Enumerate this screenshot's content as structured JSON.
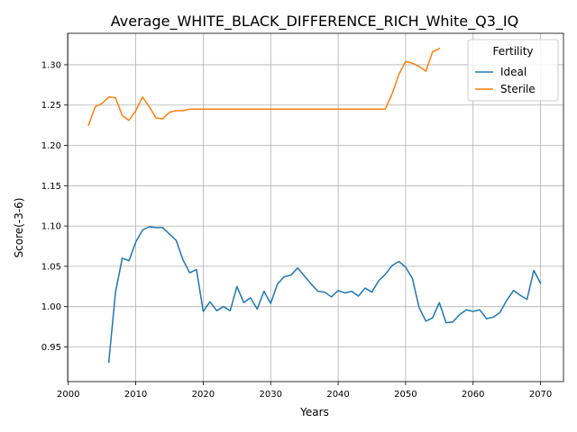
{
  "chart_data": {
    "type": "line",
    "title": "Average_WHITE_BLACK_DIFFERENCE_RICH_White_Q3_IQ",
    "xlabel": "Years",
    "ylabel": "Score(-3-6)",
    "xlim": [
      1999.9,
      2073.4
    ],
    "ylim": [
      0.907,
      1.339
    ],
    "xticks": [
      2000,
      2010,
      2020,
      2030,
      2040,
      2050,
      2060,
      2070
    ],
    "xtick_labels": [
      "2000",
      "2010",
      "2020",
      "2030",
      "2040",
      "2050",
      "2060",
      "2070"
    ],
    "yticks": [
      0.95,
      1.0,
      1.05,
      1.1,
      1.15,
      1.2,
      1.25,
      1.3
    ],
    "ytick_labels": [
      "0.95",
      "1.00",
      "1.05",
      "1.10",
      "1.15",
      "1.20",
      "1.25",
      "1.30"
    ],
    "grid": true,
    "legend": {
      "title": "Fertility",
      "position": "top-right"
    },
    "series": [
      {
        "name": "Ideal",
        "color": "#1f77b4",
        "x": [
          2006,
          2007,
          2008,
          2009,
          2010,
          2011,
          2012,
          2013,
          2014,
          2015,
          2016,
          2017,
          2018,
          2019,
          2020,
          2021,
          2022,
          2023,
          2024,
          2025,
          2026,
          2027,
          2028,
          2029,
          2030,
          2031,
          2032,
          2033,
          2034,
          2035,
          2036,
          2037,
          2038,
          2039,
          2040,
          2041,
          2042,
          2043,
          2044,
          2045,
          2046,
          2047,
          2048,
          2049,
          2050,
          2051,
          2052,
          2053,
          2054,
          2055,
          2056,
          2057,
          2058,
          2059,
          2060,
          2061,
          2062,
          2063,
          2064,
          2065,
          2066,
          2067,
          2068,
          2069,
          2070
        ],
        "y": [
          0.931,
          1.018,
          1.06,
          1.057,
          1.08,
          1.095,
          1.099,
          1.098,
          1.098,
          1.09,
          1.082,
          1.058,
          1.042,
          1.046,
          0.994,
          1.006,
          0.995,
          1.0,
          0.995,
          1.025,
          1.005,
          1.011,
          0.997,
          1.019,
          1.004,
          1.028,
          1.037,
          1.039,
          1.048,
          1.038,
          1.028,
          1.019,
          1.018,
          1.012,
          1.02,
          1.017,
          1.019,
          1.013,
          1.023,
          1.018,
          1.032,
          1.04,
          1.051,
          1.056,
          1.049,
          1.035,
          0.999,
          0.982,
          0.986,
          1.005,
          0.98,
          0.981,
          0.99,
          0.996,
          0.994,
          0.996,
          0.985,
          0.987,
          0.993,
          1.008,
          1.02,
          1.014,
          1.009,
          1.045,
          1.029
        ]
      },
      {
        "name": "Sterile",
        "color": "#ff7f0e",
        "x": [
          2003,
          2004,
          2005,
          2006,
          2007,
          2008,
          2009,
          2010,
          2011,
          2012,
          2013,
          2014,
          2015,
          2016,
          2017,
          2018,
          2019,
          2020,
          2021,
          2022,
          2023,
          2024,
          2025,
          2026,
          2027,
          2028,
          2029,
          2030,
          2031,
          2032,
          2033,
          2034,
          2035,
          2036,
          2037,
          2038,
          2039,
          2040,
          2041,
          2042,
          2043,
          2044,
          2045,
          2046,
          2047,
          2048,
          2049,
          2050,
          2051,
          2052,
          2053,
          2054,
          2055
        ],
        "y": [
          1.225,
          1.248,
          1.252,
          1.26,
          1.259,
          1.237,
          1.231,
          1.243,
          1.26,
          1.248,
          1.234,
          1.233,
          1.241,
          1.243,
          1.243,
          1.245,
          1.245,
          1.245,
          1.245,
          1.245,
          1.245,
          1.245,
          1.245,
          1.245,
          1.245,
          1.245,
          1.245,
          1.245,
          1.245,
          1.245,
          1.245,
          1.245,
          1.245,
          1.245,
          1.245,
          1.245,
          1.245,
          1.245,
          1.245,
          1.245,
          1.245,
          1.245,
          1.245,
          1.245,
          1.245,
          1.264,
          1.288,
          1.304,
          1.302,
          1.298,
          1.292,
          1.316,
          1.32
        ]
      }
    ]
  }
}
